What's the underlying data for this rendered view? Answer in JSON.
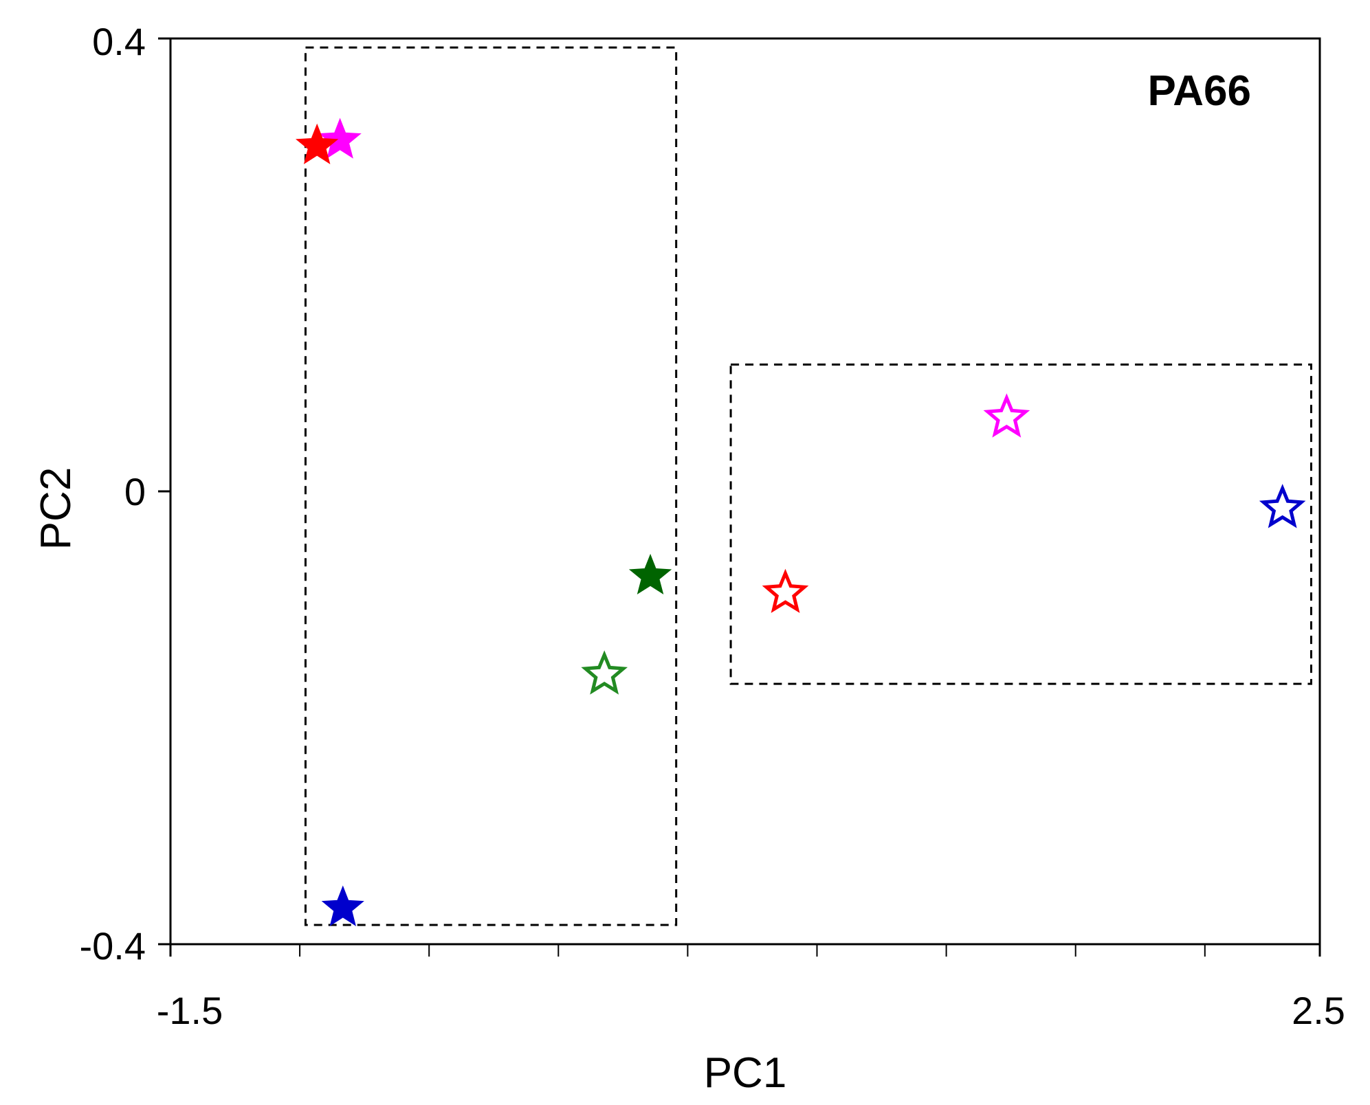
{
  "chart_data": {
    "type": "scatter",
    "title": "",
    "annotation": "PA66",
    "xlabel": "PC1",
    "ylabel": "PC2",
    "xlim": [
      -1.5,
      2.5
    ],
    "ylim": [
      -0.4,
      0.4
    ],
    "x_tick_labels": [
      "-1.5",
      "2.5"
    ],
    "y_tick_labels": [
      "0.4",
      "0",
      "-0.4"
    ],
    "x_minor_ticks": [
      -1.05,
      -0.6,
      -0.15,
      0.3,
      0.75,
      1.2,
      1.65,
      2.1
    ],
    "grid": false,
    "legend": "none",
    "series": [
      {
        "marker": "filled-star",
        "points": [
          {
            "x": -0.91,
            "y": 0.31,
            "color": "#ff00ff"
          },
          {
            "x": -0.99,
            "y": 0.305,
            "color": "#ff0000"
          },
          {
            "x": 0.17,
            "y": -0.075,
            "color": "#006400"
          },
          {
            "x": -0.9,
            "y": -0.368,
            "color": "#0000cc"
          }
        ]
      },
      {
        "marker": "open-star",
        "points": [
          {
            "x": 1.41,
            "y": 0.065,
            "color": "#ff00ff"
          },
          {
            "x": 2.37,
            "y": -0.015,
            "color": "#0000cc"
          },
          {
            "x": 0.64,
            "y": -0.09,
            "color": "#ff0000"
          },
          {
            "x": 0.01,
            "y": -0.162,
            "color": "#228b22"
          }
        ]
      }
    ],
    "group_boxes": [
      {
        "x0": -1.03,
        "x1": 0.26,
        "y0": -0.383,
        "y1": 0.392
      },
      {
        "x0": 0.45,
        "x1": 2.47,
        "y0": -0.17,
        "y1": 0.112
      }
    ]
  }
}
